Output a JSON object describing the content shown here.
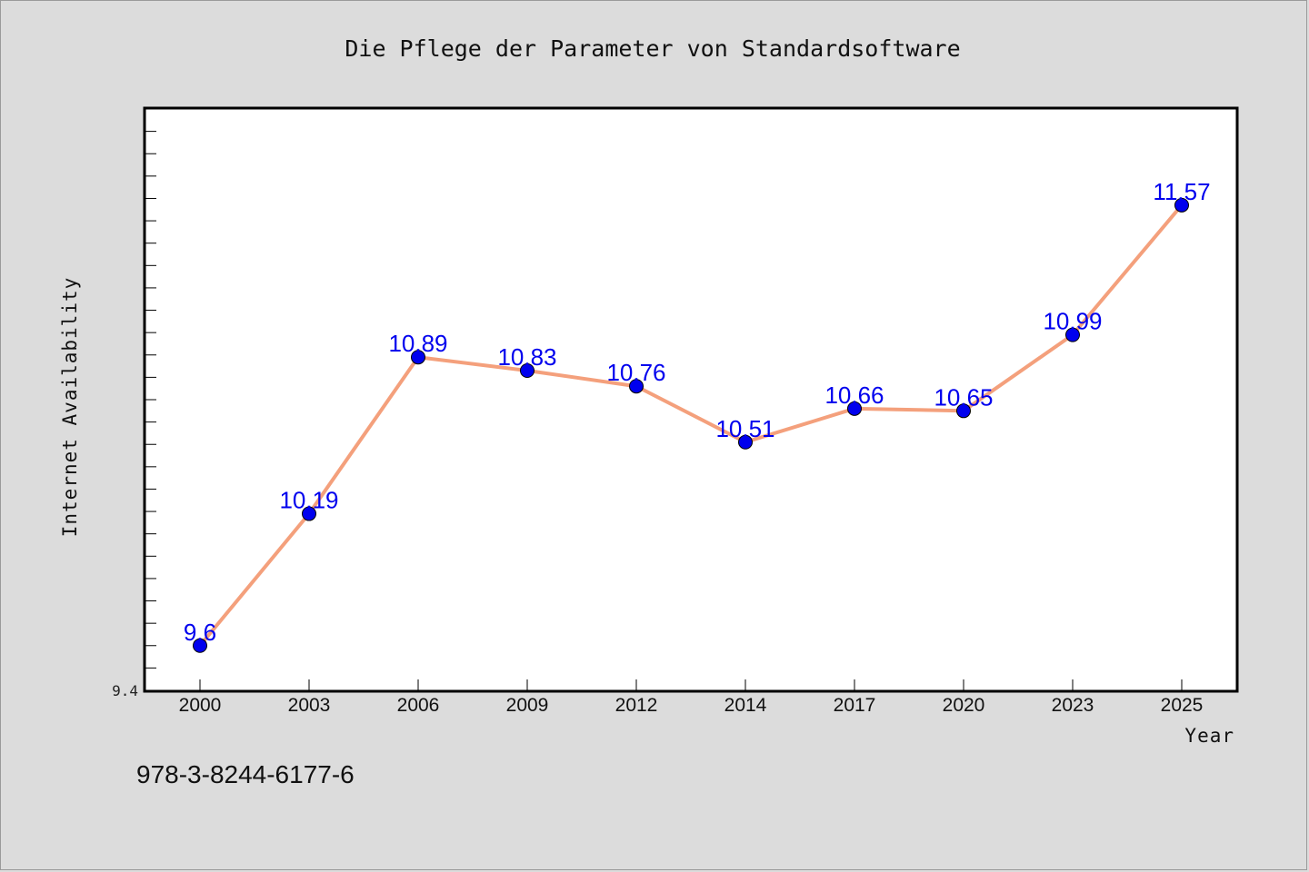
{
  "chart_data": {
    "type": "line",
    "title": "Die Pflege der Parameter von Standardsoftware",
    "xlabel": "Year",
    "ylabel": "Internet Availability",
    "categories": [
      "2000",
      "2003",
      "2006",
      "2009",
      "2012",
      "2014",
      "2017",
      "2020",
      "2023",
      "2025"
    ],
    "series": [
      {
        "values": [
          9.6,
          10.19,
          10.89,
          10.83,
          10.76,
          10.51,
          10.66,
          10.65,
          10.99,
          11.57
        ],
        "data_labels": [
          "9.6",
          "10.19",
          "10.89",
          "10.83",
          "10.76",
          "10.51",
          "10.66",
          "10.65",
          "10.99",
          "11.57"
        ],
        "line_color": "#f4a07c",
        "marker_color": "#0000ee"
      }
    ],
    "ylim": [
      9.4,
      12.0
    ],
    "yticks_labeled": [
      "9.4"
    ],
    "grid": false,
    "legend": "none",
    "background": "#ffffff",
    "figure_background": "#dcdcdc"
  },
  "footer": {
    "isbn": "978-3-8244-6177-6"
  }
}
